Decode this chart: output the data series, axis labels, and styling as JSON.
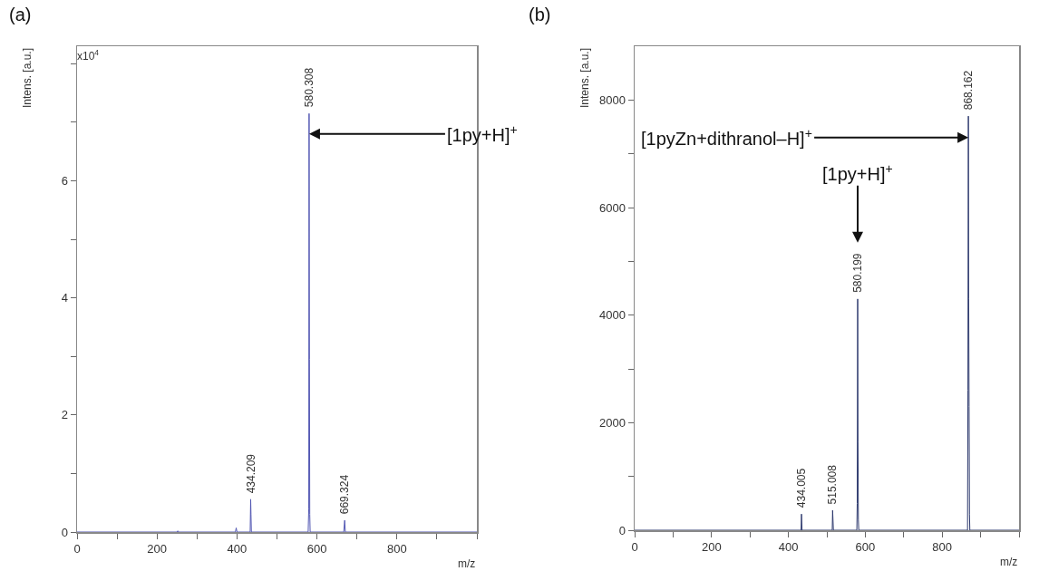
{
  "chart_data": [
    {
      "type": "line",
      "title": "(a)",
      "xlabel": "m/z",
      "ylabel": "Intens. [a.u.]",
      "annotations": [
        "x10$^{4}$",
        {
          "text": "[1py+H]$^{+}$",
          "x": 580.308,
          "y": 6.8
        },
        {
          "text": "434.209",
          "x": 434.209,
          "y": 0.56
        },
        {
          "text": "580.308",
          "x": 580.308,
          "y": 7.15
        },
        {
          "text": "669.324",
          "x": 669.324,
          "y": 0.2
        }
      ],
      "xlim": [
        0,
        1000
      ],
      "xticks": [
        0,
        {
          "value": 100,
          "label": null
        },
        200,
        {
          "value": 300,
          "label": null
        },
        400,
        {
          "value": 500,
          "label": null
        },
        600,
        {
          "value": 700,
          "label": null
        },
        800,
        {
          "value": 900,
          "label": null
        },
        {
          "value": 1000,
          "label": null
        }
      ],
      "ylim": [
        0,
        8.3
      ],
      "yticks": [
        0,
        {
          "value": 1,
          "label": null
        },
        2,
        {
          "value": 3,
          "label": null
        },
        4,
        {
          "value": 5,
          "label": null
        },
        6,
        {
          "value": 7,
          "label": null
        },
        {
          "value": 8,
          "label": null
        }
      ],
      "marker": "none",
      "line_style": "solid",
      "series": [
        {
          "color": "#5257b3",
          "x": [
            0,
            250,
            252,
            254,
            396,
            398,
            400,
            433,
            434.209,
            435,
            436,
            578,
            579.5,
            580.308,
            581.2,
            582,
            583,
            667,
            669.324,
            671,
            1000
          ],
          "values": [
            0,
            0,
            0.02,
            0,
            0,
            0.07,
            0,
            0,
            0.56,
            0.3,
            0,
            0,
            0.4,
            7.15,
            2.95,
            0.3,
            0,
            0,
            0.2,
            0,
            0
          ]
        }
      ]
    },
    {
      "type": "line",
      "title": "(b)",
      "xlabel": "m/z",
      "ylabel": "Intens. [a.u.]",
      "annotations": [
        {
          "text": "[1pyZn+dithranol–H]$^{+}$",
          "x": 868.162,
          "y": 7300
        },
        {
          "text": "[1py+H]$^{+}$",
          "x": 580.199,
          "y": 4300
        },
        {
          "text": "434.005",
          "x": 434.005,
          "y": 300
        },
        {
          "text": "515.008",
          "x": 515.008,
          "y": 370
        },
        {
          "text": "580.199",
          "x": 580.199,
          "y": 4300
        },
        {
          "text": "868.162",
          "x": 868.162,
          "y": 7700
        }
      ],
      "xlim": [
        0,
        1000
      ],
      "xticks": [
        0,
        {
          "value": 100,
          "label": null
        },
        200,
        {
          "value": 300,
          "label": null
        },
        400,
        {
          "value": 500,
          "label": null
        },
        600,
        {
          "value": 700,
          "label": null
        },
        800,
        {
          "value": 900,
          "label": null
        },
        {
          "value": 1000,
          "label": null
        }
      ],
      "ylim": [
        0,
        9000
      ],
      "yticks": [
        0,
        {
          "value": 1000,
          "label": null
        },
        2000,
        {
          "value": 3000,
          "label": null
        },
        4000,
        {
          "value": 5000,
          "label": null
        },
        6000,
        {
          "value": 7000,
          "label": null
        },
        8000
      ],
      "marker": "none",
      "line_style": "solid",
      "series": [
        {
          "color": "#2e3a6e",
          "x": [
            0,
            433,
            434.005,
            435.5,
            514,
            515.008,
            517,
            578,
            579,
            580.199,
            581,
            582,
            583,
            866,
            867,
            868.162,
            869,
            870,
            871,
            872,
            1000
          ],
          "values": [
            0,
            0,
            300,
            0,
            0,
            370,
            0,
            0,
            500,
            4300,
            1650,
            200,
            0,
            0,
            2600,
            7700,
            4300,
            2300,
            300,
            0,
            0
          ]
        }
      ]
    }
  ]
}
